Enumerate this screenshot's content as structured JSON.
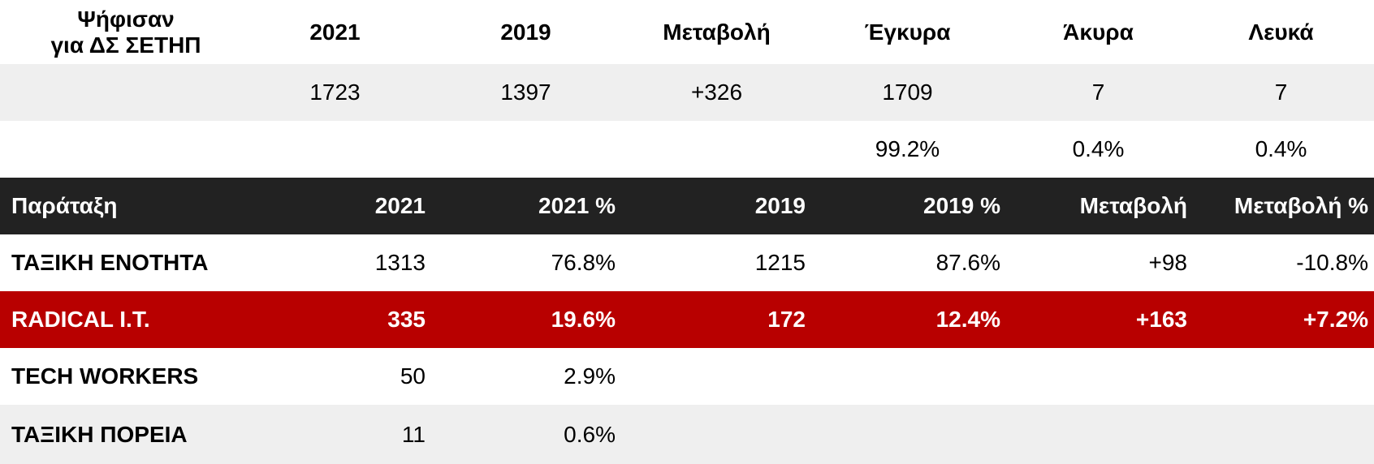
{
  "summary": {
    "title_line1": "Ψήφισαν",
    "title_line2": "για ΔΣ ΣΕΤΗΠ",
    "headers": [
      "2021",
      "2019",
      "Μεταβολή",
      "Έγκυρα",
      "Άκυρα",
      "Λευκά"
    ],
    "counts": [
      "1723",
      "1397",
      "+326",
      "1709",
      "7",
      "7"
    ],
    "percentages": [
      "99.2%",
      "0.4%",
      "0.4%"
    ]
  },
  "results": {
    "headers": [
      "Παράταξη",
      "2021",
      "2021 %",
      "2019",
      "2019 %",
      "Μεταβολή",
      "Μεταβολή %"
    ],
    "rows": [
      {
        "name": "ΤΑΞΙΚΗ ΕΝΟΤΗΤΑ",
        "v2021": "1313",
        "p2021": "76.8%",
        "v2019": "1215",
        "p2019": "87.6%",
        "change": "+98",
        "change_pct": "-10.8%"
      },
      {
        "name": "RADICAL I.T.",
        "v2021": "335",
        "p2021": "19.6%",
        "v2019": "172",
        "p2019": "12.4%",
        "change": "+163",
        "change_pct": "+7.2%"
      },
      {
        "name": "TECH WORKERS",
        "v2021": "50",
        "p2021": "2.9%"
      },
      {
        "name": "ΤΑΞΙΚΗ ΠΟΡΕΙΑ",
        "v2021": "11",
        "p2021": "0.6%"
      }
    ]
  },
  "colors": {
    "header_bg": "#222222",
    "highlight_bg": "#b80000",
    "stripe_bg": "#efefef",
    "text": "#000000",
    "text_inverse": "#ffffff"
  }
}
